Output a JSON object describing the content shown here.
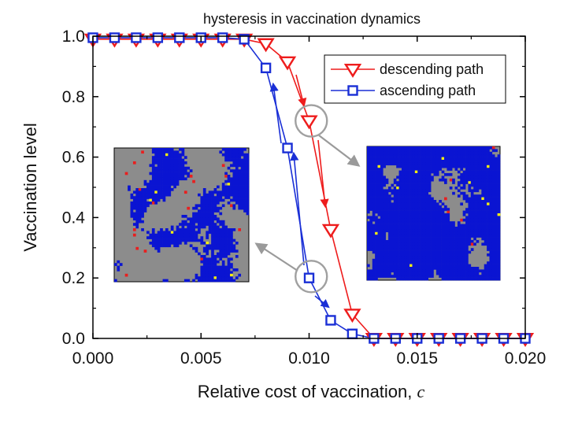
{
  "chart_data": {
    "type": "line",
    "title": "hysteresis in vaccination dynamics",
    "xlabel": "Relative cost of vaccination, ",
    "xlabel_var": "c",
    "ylabel": "Vaccination level",
    "xlim": [
      0.0,
      0.02
    ],
    "ylim": [
      0.0,
      1.0
    ],
    "xticks": [
      "0.000",
      "0.005",
      "0.010",
      "0.015",
      "0.020"
    ],
    "yticks": [
      "0.0",
      "0.2",
      "0.4",
      "0.6",
      "0.8",
      "1.0"
    ],
    "grid": false,
    "legend_position": "top-right",
    "series": [
      {
        "name": "descending path",
        "color": "#ee1c1c",
        "marker": "triangle-down",
        "x": [
          0.0,
          0.001,
          0.002,
          0.003,
          0.004,
          0.005,
          0.006,
          0.007,
          0.008,
          0.009,
          0.01,
          0.011,
          0.012,
          0.013,
          0.014,
          0.015,
          0.016,
          0.017,
          0.018,
          0.019,
          0.02
        ],
        "y": [
          0.99,
          0.99,
          0.99,
          0.99,
          0.99,
          0.99,
          0.99,
          0.99,
          0.975,
          0.915,
          0.72,
          0.36,
          0.08,
          0.0,
          0.0,
          0.0,
          0.0,
          0.0,
          0.0,
          0.0,
          0.0
        ]
      },
      {
        "name": "ascending path",
        "color": "#1a2fd6",
        "marker": "square",
        "x": [
          0.0,
          0.001,
          0.002,
          0.003,
          0.004,
          0.005,
          0.006,
          0.007,
          0.008,
          0.009,
          0.01,
          0.011,
          0.012,
          0.013,
          0.014,
          0.015,
          0.016,
          0.017,
          0.018,
          0.019,
          0.02
        ],
        "y": [
          0.995,
          0.995,
          0.995,
          0.995,
          0.995,
          0.995,
          0.995,
          0.99,
          0.895,
          0.63,
          0.2,
          0.06,
          0.015,
          0.0,
          0.0,
          0.0,
          0.0,
          0.0,
          0.0,
          0.0,
          0.0
        ]
      }
    ],
    "annotations": [
      {
        "kind": "circle",
        "x": 0.0101,
        "y": 0.72
      },
      {
        "kind": "circle",
        "x": 0.0101,
        "y": 0.205
      }
    ],
    "insets": [
      {
        "label": "lattice-snapshot-low-vaccination",
        "colors": {
          "background": "#8c8c8c",
          "vaccinated": "#0a14d2",
          "infected": "#e81f1f",
          "other": "#f5ef10"
        }
      },
      {
        "label": "lattice-snapshot-high-vaccination",
        "colors": {
          "background": "#8c8c8c",
          "vaccinated": "#0a14d2",
          "infected": "#e81f1f",
          "other": "#f5ef10"
        }
      }
    ]
  }
}
